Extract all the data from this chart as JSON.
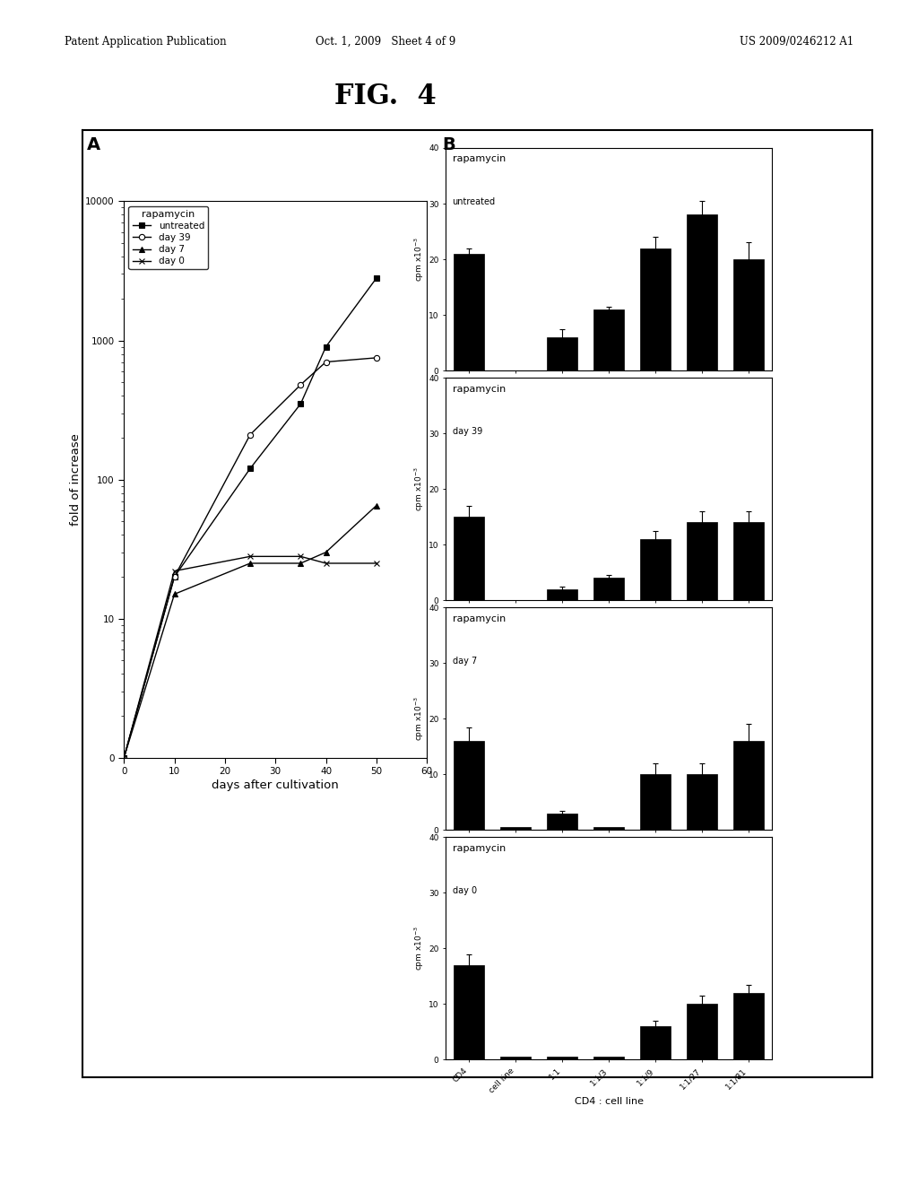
{
  "fig_title": "FIG.  4",
  "header_left": "Patent Application Publication",
  "header_center": "Oct. 1, 2009   Sheet 4 of 9",
  "header_right": "US 2009/0246212 A1",
  "line_chart": {
    "series": [
      {
        "label": "untreated",
        "marker": "s",
        "marker_fill": "black",
        "x": [
          0,
          10,
          25,
          35,
          40,
          50
        ],
        "y": [
          1,
          20,
          120,
          350,
          900,
          2800
        ]
      },
      {
        "label": "day 39",
        "marker": "o",
        "marker_fill": "white",
        "x": [
          0,
          10,
          25,
          35,
          40,
          50
        ],
        "y": [
          1,
          20,
          210,
          480,
          700,
          750
        ]
      },
      {
        "label": "day 7",
        "marker": "^",
        "marker_fill": "black",
        "x": [
          0,
          10,
          25,
          35,
          40,
          50
        ],
        "y": [
          1,
          15,
          25,
          25,
          30,
          65
        ]
      },
      {
        "label": "day 0",
        "marker": "x",
        "marker_fill": "black",
        "x": [
          0,
          10,
          25,
          35,
          40,
          50
        ],
        "y": [
          1,
          22,
          28,
          28,
          25,
          25
        ]
      }
    ],
    "xlabel": "days after cultivation",
    "ylabel": "fold of increase",
    "xlim": [
      0,
      60
    ],
    "xticks": [
      0,
      10,
      20,
      30,
      40,
      50,
      60
    ],
    "ytick_labels": [
      "0",
      "10",
      "100",
      "1000",
      "10000"
    ]
  },
  "bar_charts": [
    {
      "subtitle1": "rapamycin",
      "subtitle2": "untreated",
      "categories": [
        "CD4",
        "cell line",
        "1:1",
        "1:1/3",
        "1:1/9",
        "1:1/27",
        "1:1/81"
      ],
      "values": [
        21,
        0,
        6,
        11,
        22,
        28,
        20
      ],
      "errors": [
        1.0,
        0.0,
        1.5,
        0.5,
        2.0,
        2.5,
        3.0
      ]
    },
    {
      "subtitle1": "rapamycin",
      "subtitle2": "day 39",
      "categories": [
        "CD4",
        "cell line",
        "1:1",
        "1:1/3",
        "1:1/9",
        "1:1/27",
        "1:1/81"
      ],
      "values": [
        15,
        0,
        2,
        4,
        11,
        14,
        14
      ],
      "errors": [
        2.0,
        0.0,
        0.5,
        0.5,
        1.5,
        2.0,
        2.0
      ]
    },
    {
      "subtitle1": "rapamycin",
      "subtitle2": "day 7",
      "categories": [
        "CD4",
        "cell line",
        "1:1",
        "1:1/3",
        "1:1/9",
        "1:1/27",
        "1:1/81"
      ],
      "values": [
        16,
        0.5,
        3,
        0.5,
        10,
        10,
        16
      ],
      "errors": [
        2.5,
        0.0,
        0.5,
        0.0,
        2.0,
        2.0,
        3.0
      ]
    },
    {
      "subtitle1": "rapamycin",
      "subtitle2": "day 0",
      "categories": [
        "CD4",
        "cell line",
        "1:1",
        "1:1/3",
        "1:1/9",
        "1:1/27",
        "1:1/81"
      ],
      "values": [
        17,
        0.5,
        0.5,
        0.5,
        6,
        10,
        12
      ],
      "errors": [
        2.0,
        0.0,
        0.0,
        0.0,
        1.0,
        1.5,
        1.5
      ]
    }
  ],
  "bar_ylabel": "cpm x10-3",
  "bar_ylim": [
    0,
    40
  ],
  "bar_yticks": [
    0,
    10,
    20,
    30,
    40
  ],
  "xlabel_bottom": "CD4 : cell line",
  "bar_color": "#000000",
  "bg_color": "#ffffff",
  "border_color": "#000000"
}
